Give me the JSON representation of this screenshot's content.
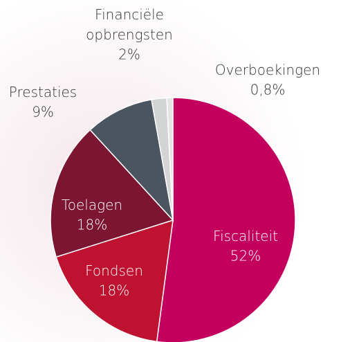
{
  "chart_data": {
    "type": "pie",
    "categories": [
      "Fiscaliteit",
      "Fondsen",
      "Toelagen",
      "Prestaties",
      "Financiële opbrengsten",
      "Overboekingen"
    ],
    "values": [
      52,
      18,
      18,
      9,
      2,
      0.8
    ],
    "value_labels": [
      "52%",
      "18%",
      "18%",
      "9%",
      "2%",
      "0,8%"
    ],
    "colors": [
      "#c4005f",
      "#bf1230",
      "#7b1531",
      "#4b5560",
      "#d3d5d5",
      "#e4e4e4"
    ]
  }
}
